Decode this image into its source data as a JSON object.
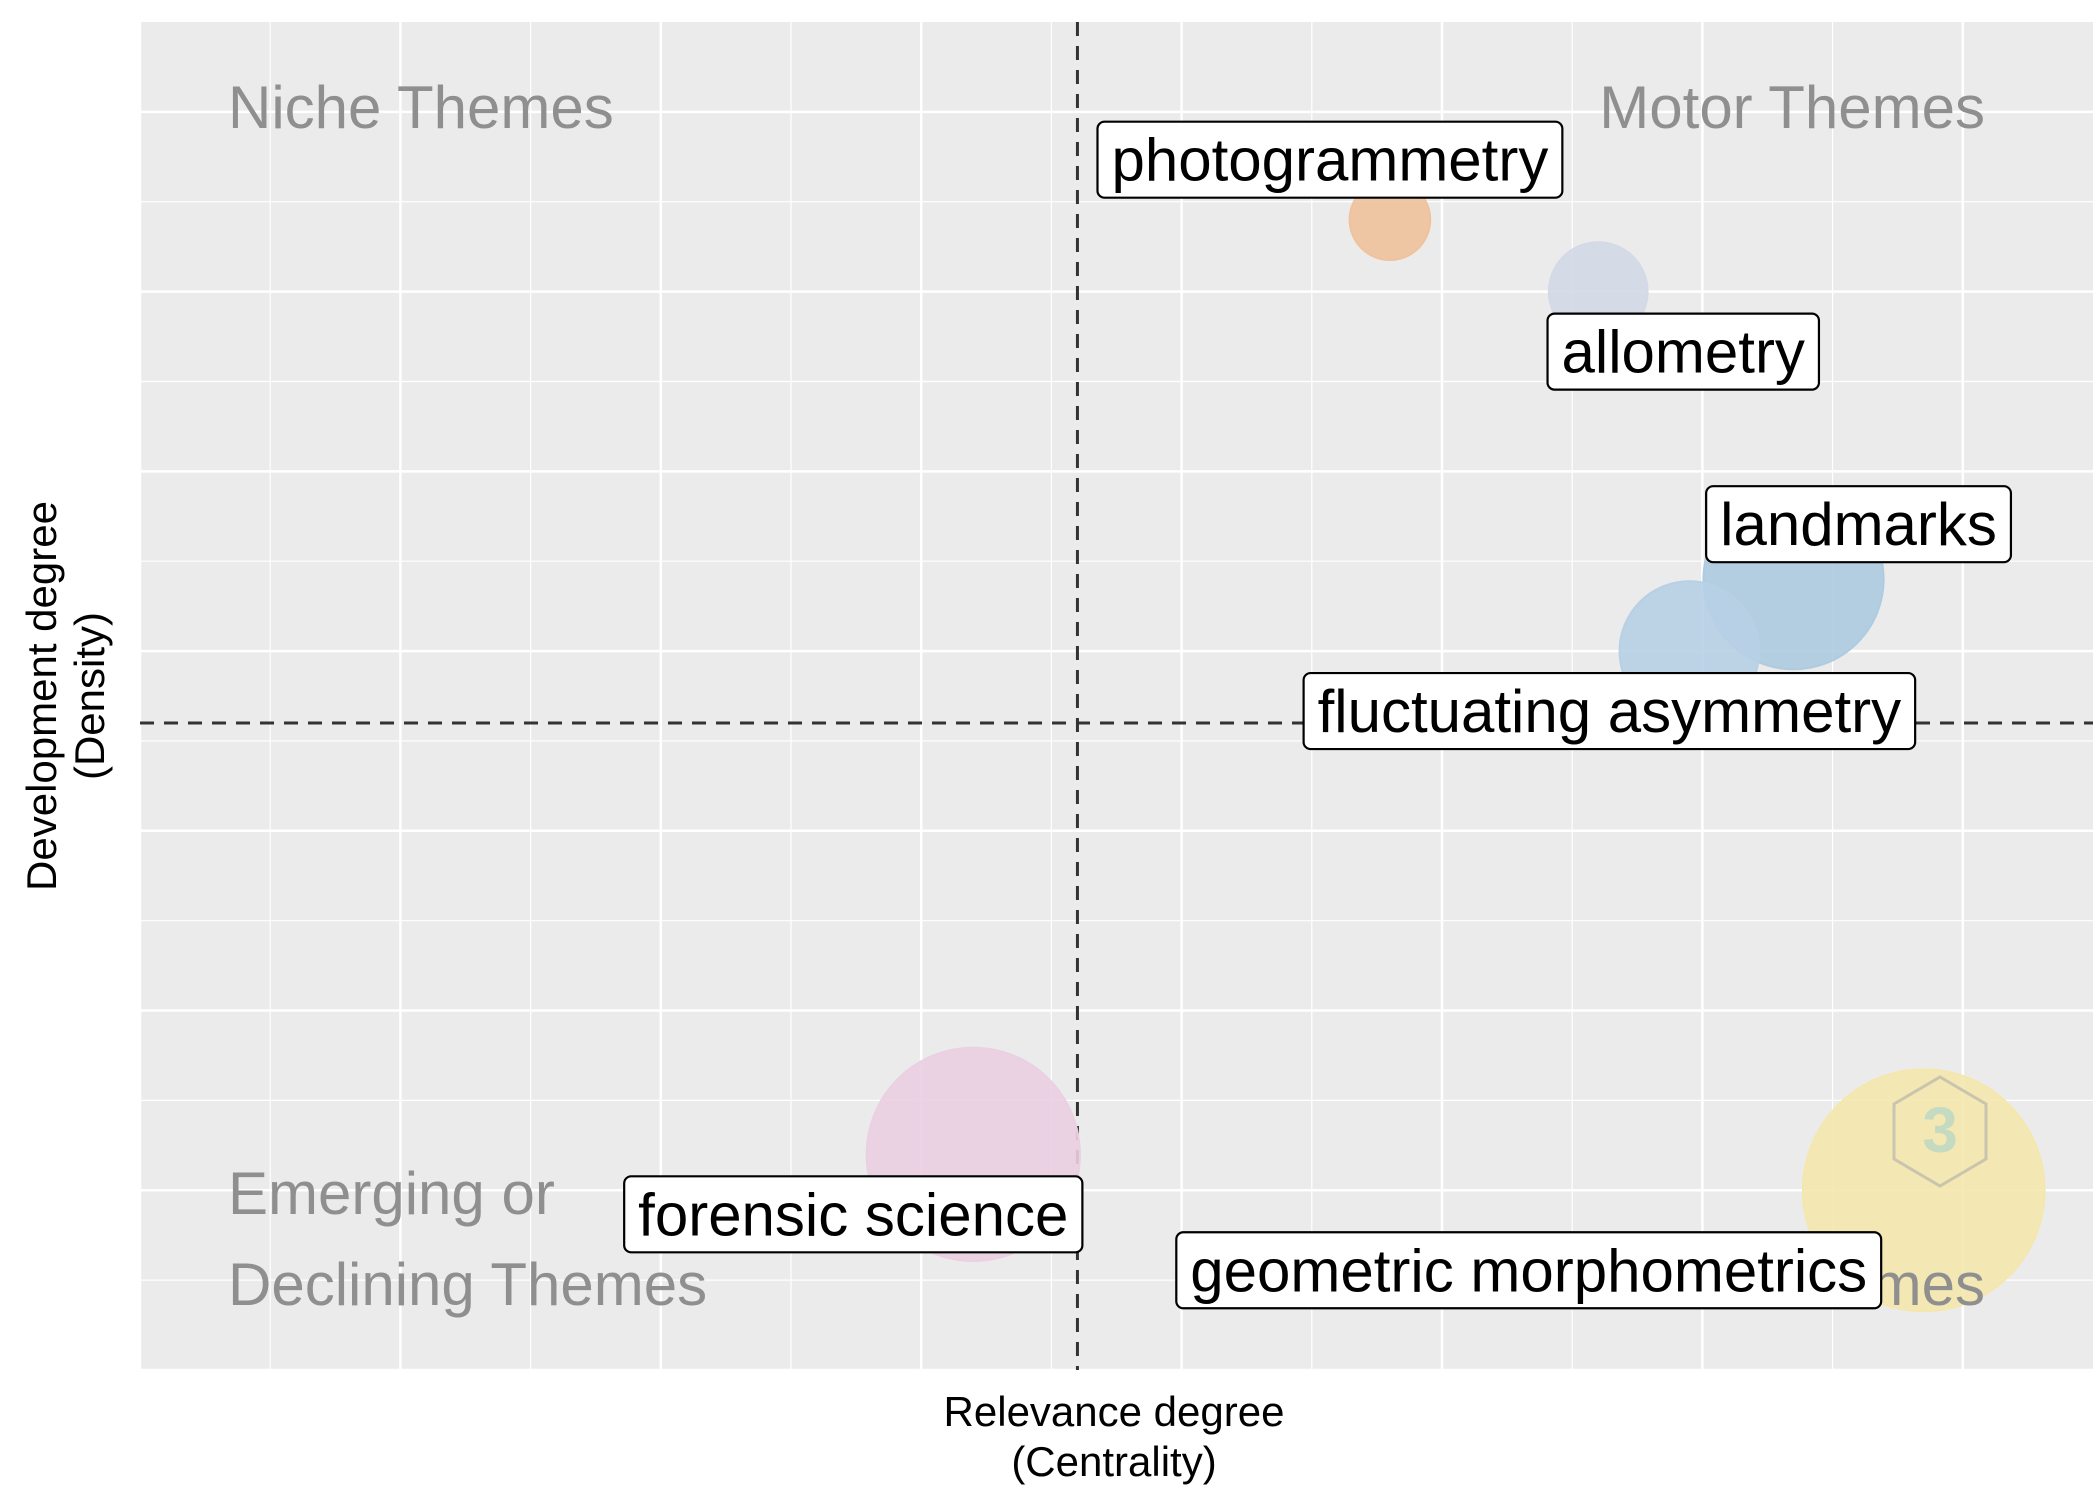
{
  "chart_data": {
    "type": "scatter",
    "xlabel": "Relevance degree\n(Centrality)",
    "ylabel": "Development degree\n(Density)",
    "quadrants": {
      "top_left": "Niche Themes",
      "top_right": "Motor Themes",
      "bottom_left": [
        "Emerging or",
        "Declining Themes"
      ],
      "bottom_right": "Basic Themes"
    },
    "xlim": [
      0,
      15
    ],
    "ylim": [
      0,
      15
    ],
    "x_breaks": [
      0,
      2,
      4,
      6,
      8,
      10,
      12,
      14
    ],
    "y_breaks": [
      0,
      2,
      4,
      6,
      8,
      10,
      12,
      14
    ],
    "mean_x": 7.2,
    "mean_y": 7.2,
    "grid": true,
    "points": [
      {
        "label": "photogrammetry",
        "x": 9.6,
        "y": 12.8,
        "size": 1,
        "color": "#f0c29c"
      },
      {
        "label": "allometry",
        "x": 11.2,
        "y": 12.0,
        "size": 1.5,
        "color": "#d3d9e6"
      },
      {
        "label": "landmarks",
        "x": 12.7,
        "y": 8.8,
        "size": 5,
        "color": "#aecbe0"
      },
      {
        "label": "fluctuating asymmetry",
        "x": 11.9,
        "y": 8.0,
        "size": 3,
        "color": "#b7d0e5"
      },
      {
        "label": "forensic science",
        "x": 6.4,
        "y": 2.4,
        "size": 7,
        "color": "#ebcfe2"
      },
      {
        "label": "geometric morphometrics",
        "x": 13.7,
        "y": 2.0,
        "size": 9,
        "color": "#f4e7ae"
      }
    ]
  },
  "colors": {
    "panel_bg": "#ebebeb",
    "grid_line": "#ffffff",
    "quadrant_text": "#8f8f8f",
    "reference_line": "#333333"
  }
}
